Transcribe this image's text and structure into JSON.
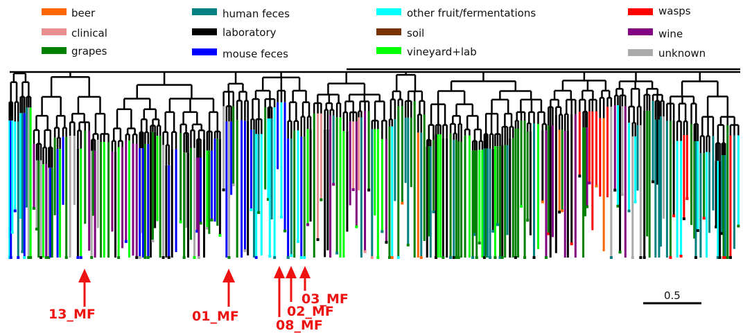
{
  "legend": [
    {
      "label": "beer",
      "color": "#ff6600"
    },
    {
      "label": "clinical",
      "color": "#e88f8f"
    },
    {
      "label": "grapes",
      "color": "#008000"
    },
    {
      "label": "human feces",
      "color": "#008080"
    },
    {
      "label": "laboratory",
      "color": "#000000"
    },
    {
      "label": "mouse feces",
      "color": "#0000ff"
    },
    {
      "label": "other fruit/fermentations",
      "color": "#00ffff"
    },
    {
      "label": "soil",
      "color": "#7a3300"
    },
    {
      "label": "vineyard+lab",
      "color": "#00ff00"
    },
    {
      "label": "wasps",
      "color": "#ff0000"
    },
    {
      "label": "wine",
      "color": "#800080"
    },
    {
      "label": "unknown",
      "color": "#aaaaaa"
    }
  ],
  "annotations": [
    {
      "label": "13_MF"
    },
    {
      "label": "01_MF"
    },
    {
      "label": "08_MF"
    },
    {
      "label": "02_MF"
    },
    {
      "label": "03_MF"
    }
  ],
  "scale_bar": {
    "label": "0.5",
    "value": 0.5
  },
  "colors": {
    "annotation": "#ee1111",
    "tree": "#000000"
  }
}
